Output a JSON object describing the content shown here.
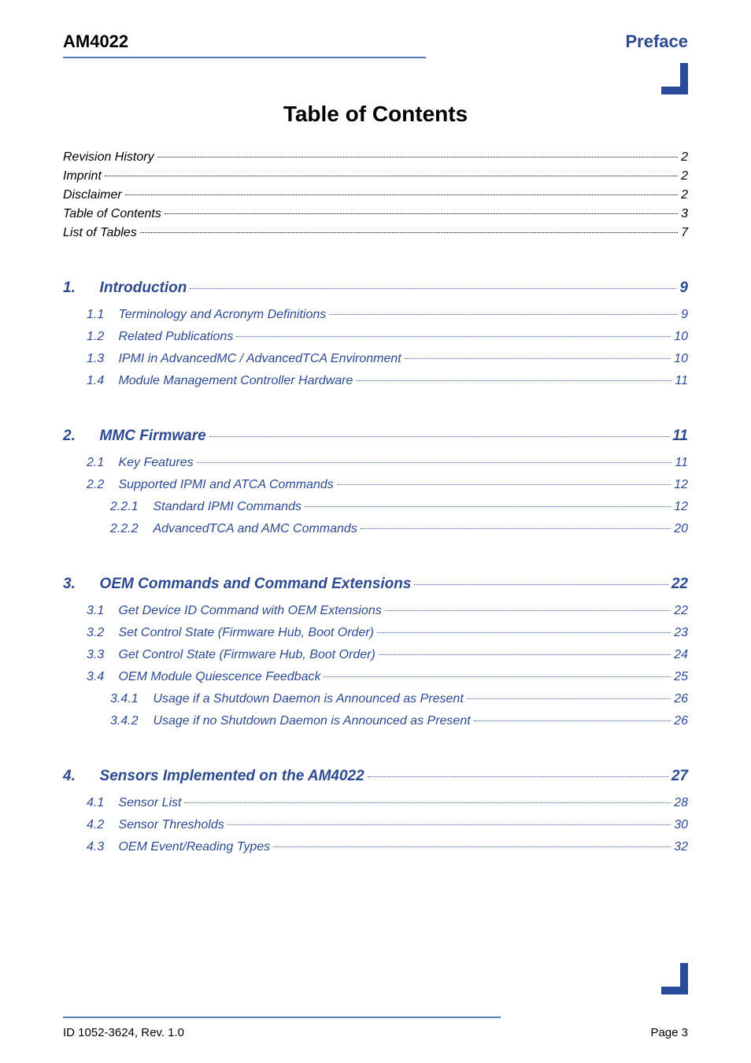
{
  "header": {
    "left": "AM4022",
    "right": "Preface"
  },
  "title": "Table of Contents",
  "front_matter": [
    {
      "label": "Revision History",
      "page": "2"
    },
    {
      "label": "Imprint",
      "page": "2"
    },
    {
      "label": "Disclaimer",
      "page": "2"
    },
    {
      "label": "Table of Contents",
      "page": "3"
    },
    {
      "label": "List of Tables",
      "page": "7"
    }
  ],
  "sections": [
    {
      "num": "1.",
      "title": "Introduction",
      "page": "9",
      "children": [
        {
          "level": 1,
          "num": "1.1",
          "title": "Terminology and Acronym Definitions",
          "page": "9"
        },
        {
          "level": 1,
          "num": "1.2",
          "title": "Related Publications",
          "page": "10"
        },
        {
          "level": 1,
          "num": "1.3",
          "title": "IPMI in AdvancedMC / AdvancedTCA Environment",
          "page": "10"
        },
        {
          "level": 1,
          "num": "1.4",
          "title": "Module Management Controller Hardware",
          "page": "11"
        }
      ]
    },
    {
      "num": "2.",
      "title": "MMC Firmware",
      "page": "11",
      "children": [
        {
          "level": 1,
          "num": "2.1",
          "title": "Key Features",
          "page": "11"
        },
        {
          "level": 1,
          "num": "2.2",
          "title": "Supported IPMI and ATCA Commands",
          "page": "12"
        },
        {
          "level": 2,
          "num": "2.2.1",
          "title": "Standard IPMI Commands",
          "page": "12"
        },
        {
          "level": 2,
          "num": "2.2.2",
          "title": "AdvancedTCA and AMC Commands",
          "page": "20"
        }
      ]
    },
    {
      "num": "3.",
      "title": "OEM Commands and Command Extensions",
      "page": "22",
      "children": [
        {
          "level": 1,
          "num": "3.1",
          "title": "Get Device ID Command with OEM Extensions",
          "page": "22"
        },
        {
          "level": 1,
          "num": "3.2",
          "title": "Set Control State (Firmware Hub, Boot Order)",
          "page": "23"
        },
        {
          "level": 1,
          "num": "3.3",
          "title": "Get Control State (Firmware Hub, Boot Order)",
          "page": "24"
        },
        {
          "level": 1,
          "num": "3.4",
          "title": "OEM Module Quiescence Feedback",
          "page": "25"
        },
        {
          "level": 2,
          "num": "3.4.1",
          "title": "Usage if a Shutdown Daemon is Announced as Present",
          "page": "26"
        },
        {
          "level": 2,
          "num": "3.4.2",
          "title": "Usage if no Shutdown Daemon is Announced as Present",
          "page": "26"
        }
      ]
    },
    {
      "num": "4.",
      "title": "Sensors Implemented on the AM4022",
      "page": "27",
      "children": [
        {
          "level": 1,
          "num": "4.1",
          "title": "Sensor List",
          "page": "28"
        },
        {
          "level": 1,
          "num": "4.2",
          "title": "Sensor Thresholds",
          "page": "30"
        },
        {
          "level": 1,
          "num": "4.3",
          "title": "OEM Event/Reading Types",
          "page": "32"
        }
      ]
    }
  ],
  "footer": {
    "left": "ID 1052-3624, Rev. 1.0",
    "right": "Page 3"
  }
}
